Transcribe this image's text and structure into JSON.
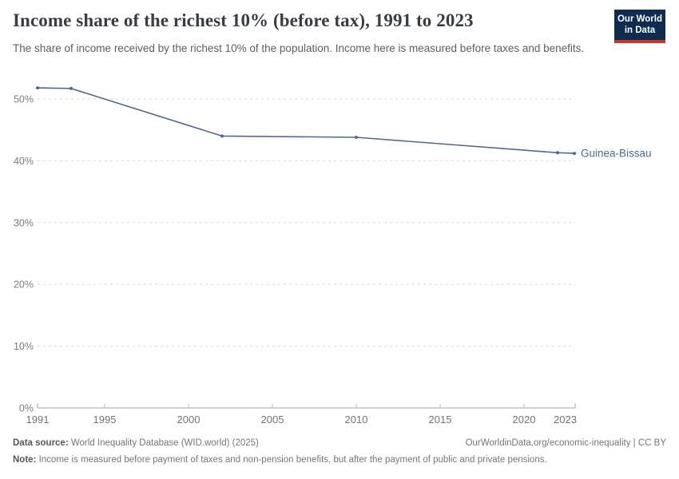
{
  "header": {
    "title": "Income share of the richest 10% (before tax), 1991 to 2023",
    "subtitle": "The share of income received by the richest 10% of the population. Income here is measured before taxes and benefits.",
    "logo_line1": "Our World",
    "logo_line2": "in Data"
  },
  "chart_data": {
    "type": "line",
    "title": "Income share of the richest 10% (before tax), 1991 to 2023",
    "series": [
      {
        "name": "Guinea-Bissau",
        "color": "#4c6a9c",
        "points": [
          {
            "x": 1991,
            "y": 51.8
          },
          {
            "x": 1993,
            "y": 51.7
          },
          {
            "x": 2002,
            "y": 44.0
          },
          {
            "x": 2010,
            "y": 43.8
          },
          {
            "x": 2022,
            "y": 41.3
          },
          {
            "x": 2023,
            "y": 41.2
          }
        ]
      }
    ],
    "end_label": "Guinea-Bissau",
    "xlim": [
      1991,
      2023
    ],
    "ylim": [
      0,
      53
    ],
    "x_ticks": [
      1991,
      1995,
      2000,
      2005,
      2010,
      2015,
      2020,
      2023
    ],
    "y_ticks": [
      0,
      10,
      20,
      30,
      40,
      50
    ],
    "y_tick_suffix": "%",
    "grid": "horizontal-dashed",
    "legend_position": "end-of-line-label"
  },
  "footer": {
    "source_label": "Data source:",
    "source_text": " World Inequality Database (WID.world) (2025)",
    "link_text": "OurWorldinData.org/economic-inequality | CC BY",
    "note_label": "Note:",
    "note_text": " Income is measured before payment of taxes and non-pension benefits, but after the payment of public and private pensions."
  },
  "colors": {
    "line": "#4c6a9c",
    "gridline": "#d8d8d8",
    "axis": "#a3a3a3",
    "tick_label": "#737373",
    "logo_bg": "#0e2c50",
    "logo_accent": "#cc3329"
  }
}
